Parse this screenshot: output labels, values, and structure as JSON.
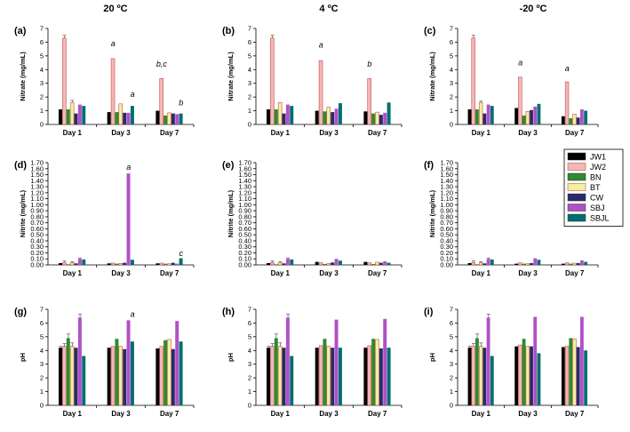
{
  "column_titles": [
    "20 ºC",
    "4 ºC",
    "-20 ºC"
  ],
  "colors": {
    "JW1": "#000000",
    "JW2": "#f2b8b8",
    "BN": "#2e8b2e",
    "BT": "#f0f0a0",
    "CW": "#2a2a6a",
    "SBJ": "#b050c8",
    "SBJL": "#006e6e"
  },
  "chart_data": [
    {
      "id": "a",
      "panel_label": "(a)",
      "type": "bar",
      "ylabel": "Nitrate (mg/mL)",
      "ylim": [
        0,
        7
      ],
      "yticks": [
        "0",
        "1",
        "2",
        "3",
        "4",
        "5",
        "6",
        "7"
      ],
      "categories": [
        "Day 1",
        "Day 3",
        "Day 7"
      ],
      "series": [
        {
          "name": "JW1",
          "values": [
            1.1,
            0.9,
            1.0
          ],
          "errors": [
            0,
            0,
            0
          ]
        },
        {
          "name": "JW2",
          "values": [
            6.3,
            4.8,
            3.35
          ],
          "errors": [
            0.2,
            0,
            0
          ]
        },
        {
          "name": "BN",
          "values": [
            1.1,
            0.9,
            0.65
          ],
          "errors": [
            0,
            0,
            0
          ]
        },
        {
          "name": "BT",
          "values": [
            1.6,
            1.5,
            0.85
          ],
          "errors": [
            0.15,
            0,
            0
          ]
        },
        {
          "name": "CW",
          "values": [
            0.8,
            0.85,
            0.8
          ],
          "errors": [
            0,
            0,
            0
          ]
        },
        {
          "name": "SBJ",
          "values": [
            1.45,
            0.85,
            0.75
          ],
          "errors": [
            0,
            0,
            0
          ]
        },
        {
          "name": "SBJL",
          "values": [
            1.35,
            1.35,
            0.8
          ],
          "errors": [
            0,
            0,
            0
          ]
        }
      ],
      "annotations": [
        {
          "text": "a",
          "category": 1,
          "series": "JW2",
          "value": 5.7
        },
        {
          "text": "a",
          "category": 1,
          "series": "SBJL",
          "value": 2.0
        },
        {
          "text": "b,c",
          "category": 2,
          "series": "JW2",
          "value": 4.2
        },
        {
          "text": "b",
          "category": 2,
          "series": "SBJL",
          "value": 1.4
        }
      ]
    },
    {
      "id": "b",
      "panel_label": "(b)",
      "type": "bar",
      "ylabel": "Nitrate (mg/mL)",
      "ylim": [
        0,
        7
      ],
      "yticks": [
        "0",
        "1",
        "2",
        "3",
        "4",
        "5",
        "6",
        "7"
      ],
      "categories": [
        "Day 1",
        "Day 3",
        "Day 7"
      ],
      "series": [
        {
          "name": "JW1",
          "values": [
            1.1,
            1.0,
            0.95
          ],
          "errors": [
            0,
            0,
            0
          ]
        },
        {
          "name": "JW2",
          "values": [
            6.3,
            4.65,
            3.35
          ],
          "errors": [
            0.2,
            0,
            0
          ]
        },
        {
          "name": "BN",
          "values": [
            1.1,
            0.95,
            0.8
          ],
          "errors": [
            0,
            0,
            0
          ]
        },
        {
          "name": "BT",
          "values": [
            1.6,
            1.25,
            0.9
          ],
          "errors": [
            0,
            0,
            0
          ]
        },
        {
          "name": "CW",
          "values": [
            0.8,
            0.9,
            0.7
          ],
          "errors": [
            0,
            0,
            0
          ]
        },
        {
          "name": "SBJ",
          "values": [
            1.45,
            1.15,
            0.85
          ],
          "errors": [
            0,
            0,
            0
          ]
        },
        {
          "name": "SBJL",
          "values": [
            1.35,
            1.55,
            1.6
          ],
          "errors": [
            0,
            0,
            0
          ]
        }
      ],
      "annotations": [
        {
          "text": "a",
          "category": 1,
          "series": "JW2",
          "value": 5.6
        },
        {
          "text": "b",
          "category": 2,
          "series": "JW2",
          "value": 4.2
        }
      ]
    },
    {
      "id": "c",
      "panel_label": "(c)",
      "type": "bar",
      "ylabel": "Nitrate (mg/mL)",
      "ylim": [
        0,
        7
      ],
      "yticks": [
        "0",
        "1",
        "2",
        "3",
        "4",
        "5",
        "6",
        "7"
      ],
      "categories": [
        "Day 1",
        "Day 3",
        "Day 7"
      ],
      "series": [
        {
          "name": "JW1",
          "values": [
            1.1,
            1.2,
            0.6
          ],
          "errors": [
            0,
            0,
            0
          ]
        },
        {
          "name": "JW2",
          "values": [
            6.3,
            3.45,
            3.1
          ],
          "errors": [
            0.2,
            0,
            0
          ]
        },
        {
          "name": "BN",
          "values": [
            1.1,
            0.65,
            0.45
          ],
          "errors": [
            0,
            0,
            0
          ]
        },
        {
          "name": "BT",
          "values": [
            1.6,
            0.95,
            0.75
          ],
          "errors": [
            0.1,
            0,
            0
          ]
        },
        {
          "name": "CW",
          "values": [
            0.8,
            1.05,
            0.5
          ],
          "errors": [
            0,
            0,
            0
          ]
        },
        {
          "name": "SBJ",
          "values": [
            1.45,
            1.3,
            1.1
          ],
          "errors": [
            0,
            0,
            0
          ]
        },
        {
          "name": "SBJL",
          "values": [
            1.35,
            1.5,
            1.0
          ],
          "errors": [
            0,
            0,
            0
          ]
        }
      ],
      "annotations": [
        {
          "text": "a",
          "category": 1,
          "series": "JW2",
          "value": 4.3
        },
        {
          "text": "a",
          "category": 2,
          "series": "JW2",
          "value": 3.9
        }
      ]
    },
    {
      "id": "d",
      "panel_label": "(d)",
      "type": "bar",
      "ylabel": "Nitrite (mg/mL)",
      "ylim": [
        0,
        1.7
      ],
      "yticks": [
        "0.00",
        "0.10",
        "0.20",
        "0.30",
        "0.40",
        "0.50",
        "0.60",
        "0.70",
        "0.80",
        "0.90",
        "1.00",
        "1.10",
        "1.20",
        "1.30",
        "1.40",
        "1.50",
        "1.60",
        "1.70"
      ],
      "categories": [
        "Day 1",
        "Day 3",
        "Day 7"
      ],
      "series": [
        {
          "name": "JW1",
          "values": [
            0.03,
            0.025,
            0.025
          ],
          "errors": [
            0,
            0,
            0
          ]
        },
        {
          "name": "JW2",
          "values": [
            0.04,
            0.03,
            0.03
          ],
          "errors": [
            0.025,
            0,
            0
          ]
        },
        {
          "name": "BN",
          "values": [
            0.01,
            0.02,
            0.02
          ],
          "errors": [
            0,
            0,
            0
          ]
        },
        {
          "name": "BT",
          "values": [
            0.035,
            0.025,
            0.02
          ],
          "errors": [
            0.015,
            0,
            0
          ]
        },
        {
          "name": "CW",
          "values": [
            0.025,
            0.035,
            0.035
          ],
          "errors": [
            0,
            0,
            0
          ]
        },
        {
          "name": "SBJ",
          "values": [
            0.1,
            1.52,
            0.02
          ],
          "errors": [
            0.015,
            0,
            0
          ]
        },
        {
          "name": "SBJL",
          "values": [
            0.09,
            0.085,
            0.11
          ],
          "errors": [
            0,
            0,
            0
          ]
        }
      ],
      "annotations": [
        {
          "text": "a",
          "category": 1,
          "series": "SBJ",
          "value": 1.58
        },
        {
          "text": "c",
          "category": 2,
          "series": "SBJL",
          "value": 0.15
        }
      ]
    },
    {
      "id": "e",
      "panel_label": "(e)",
      "type": "bar",
      "ylabel": "Nitrite (mg/mL)",
      "ylim": [
        0,
        1.7
      ],
      "yticks": [
        "0.00",
        "0.10",
        "0.20",
        "0.30",
        "0.40",
        "0.50",
        "0.60",
        "0.70",
        "0.80",
        "0.90",
        "1.00",
        "1.10",
        "1.20",
        "1.30",
        "1.40",
        "1.50",
        "1.60",
        "1.70"
      ],
      "categories": [
        "Day 1",
        "Day 3",
        "Day 7"
      ],
      "series": [
        {
          "name": "JW1",
          "values": [
            0.03,
            0.05,
            0.05
          ],
          "errors": [
            0,
            0,
            0
          ]
        },
        {
          "name": "JW2",
          "values": [
            0.04,
            0.035,
            0.035
          ],
          "errors": [
            0.025,
            0,
            0
          ]
        },
        {
          "name": "BN",
          "values": [
            0.01,
            0.015,
            0.015
          ],
          "errors": [
            0,
            0,
            0
          ]
        },
        {
          "name": "BT",
          "values": [
            0.035,
            0.025,
            0.045
          ],
          "errors": [
            0.015,
            0,
            0
          ]
        },
        {
          "name": "CW",
          "values": [
            0.025,
            0.04,
            0.035
          ],
          "errors": [
            0,
            0,
            0
          ]
        },
        {
          "name": "SBJ",
          "values": [
            0.1,
            0.1,
            0.06
          ],
          "errors": [
            0.015,
            0,
            0
          ]
        },
        {
          "name": "SBJL",
          "values": [
            0.09,
            0.07,
            0.035
          ],
          "errors": [
            0,
            0,
            0
          ]
        }
      ],
      "annotations": []
    },
    {
      "id": "f",
      "panel_label": "(f)",
      "type": "bar",
      "ylabel": "Nitrite (mg/mL)",
      "ylim": [
        0,
        1.7
      ],
      "yticks": [
        "0.00",
        "0.10",
        "0.20",
        "0.30",
        "0.40",
        "0.50",
        "0.60",
        "0.70",
        "0.80",
        "0.90",
        "1.00",
        "1.10",
        "1.20",
        "1.30",
        "1.40",
        "1.50",
        "1.60",
        "1.70"
      ],
      "categories": [
        "Day 1",
        "Day 3",
        "Day 7"
      ],
      "series": [
        {
          "name": "JW1",
          "values": [
            0.03,
            0.02,
            0.02
          ],
          "errors": [
            0,
            0,
            0
          ]
        },
        {
          "name": "JW2",
          "values": [
            0.04,
            0.035,
            0.035
          ],
          "errors": [
            0.025,
            0,
            0
          ]
        },
        {
          "name": "BN",
          "values": [
            0.01,
            0.02,
            0.02
          ],
          "errors": [
            0,
            0,
            0
          ]
        },
        {
          "name": "BT",
          "values": [
            0.035,
            0.02,
            0.03
          ],
          "errors": [
            0.015,
            0,
            0
          ]
        },
        {
          "name": "CW",
          "values": [
            0.025,
            0.03,
            0.03
          ],
          "errors": [
            0,
            0,
            0
          ]
        },
        {
          "name": "SBJ",
          "values": [
            0.1,
            0.11,
            0.075
          ],
          "errors": [
            0.015,
            0,
            0
          ]
        },
        {
          "name": "SBJL",
          "values": [
            0.09,
            0.085,
            0.05
          ],
          "errors": [
            0,
            0,
            0
          ]
        }
      ],
      "annotations": []
    },
    {
      "id": "g",
      "panel_label": "(g)",
      "type": "bar",
      "ylabel": "pH",
      "ylim": [
        0,
        7
      ],
      "yticks": [
        "0",
        "1",
        "2",
        "3",
        "4",
        "5",
        "6",
        "7"
      ],
      "categories": [
        "Day 1",
        "Day 3",
        "Day 7"
      ],
      "series": [
        {
          "name": "JW1",
          "values": [
            4.2,
            4.2,
            4.15
          ],
          "errors": [
            0.1,
            0,
            0
          ]
        },
        {
          "name": "JW2",
          "values": [
            4.3,
            4.3,
            4.3
          ],
          "errors": [
            0.2,
            0,
            0
          ]
        },
        {
          "name": "BN",
          "values": [
            4.9,
            4.85,
            4.75
          ],
          "errors": [
            0.3,
            0,
            0
          ]
        },
        {
          "name": "BT",
          "values": [
            4.3,
            4.3,
            4.8
          ],
          "errors": [
            0.25,
            0,
            0
          ]
        },
        {
          "name": "CW",
          "values": [
            4.2,
            4.1,
            4.1
          ],
          "errors": [
            0,
            0,
            0
          ]
        },
        {
          "name": "SBJ",
          "values": [
            6.4,
            6.2,
            6.15
          ],
          "errors": [
            0.25,
            0,
            0
          ]
        },
        {
          "name": "SBJL",
          "values": [
            3.6,
            4.65,
            4.65
          ],
          "errors": [
            0,
            0,
            0
          ]
        }
      ],
      "annotations": [
        {
          "text": "a",
          "category": 1,
          "series": "SBJL",
          "value": 6.45
        }
      ]
    },
    {
      "id": "h",
      "panel_label": "(h)",
      "type": "bar",
      "ylabel": "pH",
      "ylim": [
        0,
        7
      ],
      "yticks": [
        "0",
        "1",
        "2",
        "3",
        "4",
        "5",
        "6",
        "7"
      ],
      "categories": [
        "Day 1",
        "Day 3",
        "Day 7"
      ],
      "series": [
        {
          "name": "JW1",
          "values": [
            4.2,
            4.2,
            4.2
          ],
          "errors": [
            0.1,
            0,
            0
          ]
        },
        {
          "name": "JW2",
          "values": [
            4.3,
            4.35,
            4.35
          ],
          "errors": [
            0.2,
            0,
            0
          ]
        },
        {
          "name": "BN",
          "values": [
            4.9,
            4.85,
            4.85
          ],
          "errors": [
            0.3,
            0,
            0
          ]
        },
        {
          "name": "BT",
          "values": [
            4.3,
            4.3,
            4.8
          ],
          "errors": [
            0.25,
            0,
            0
          ]
        },
        {
          "name": "CW",
          "values": [
            4.2,
            4.2,
            4.15
          ],
          "errors": [
            0,
            0,
            0
          ]
        },
        {
          "name": "SBJ",
          "values": [
            6.4,
            6.25,
            6.3
          ],
          "errors": [
            0.25,
            0,
            0
          ]
        },
        {
          "name": "SBJL",
          "values": [
            3.6,
            4.2,
            4.2
          ],
          "errors": [
            0,
            0,
            0
          ]
        }
      ],
      "annotations": []
    },
    {
      "id": "i",
      "panel_label": "(i)",
      "type": "bar",
      "ylabel": "pH",
      "ylim": [
        0,
        7
      ],
      "yticks": [
        "0",
        "1",
        "2",
        "3",
        "4",
        "5",
        "6",
        "7"
      ],
      "categories": [
        "Day 1",
        "Day 3",
        "Day 7"
      ],
      "series": [
        {
          "name": "JW1",
          "values": [
            4.2,
            4.3,
            4.25
          ],
          "errors": [
            0.1,
            0,
            0
          ]
        },
        {
          "name": "JW2",
          "values": [
            4.3,
            4.4,
            4.3
          ],
          "errors": [
            0.2,
            0,
            0
          ]
        },
        {
          "name": "BN",
          "values": [
            4.9,
            4.85,
            4.9
          ],
          "errors": [
            0.3,
            0,
            0
          ]
        },
        {
          "name": "BT",
          "values": [
            4.3,
            4.3,
            4.85
          ],
          "errors": [
            0.25,
            0,
            0
          ]
        },
        {
          "name": "CW",
          "values": [
            4.2,
            4.3,
            4.25
          ],
          "errors": [
            0,
            0,
            0
          ]
        },
        {
          "name": "SBJ",
          "values": [
            6.4,
            6.45,
            6.45
          ],
          "errors": [
            0.25,
            0,
            0
          ]
        },
        {
          "name": "SBJL",
          "values": [
            3.6,
            3.8,
            4.0
          ],
          "errors": [
            0,
            0,
            0
          ]
        }
      ],
      "annotations": []
    }
  ],
  "legend": {
    "entries": [
      "JW1",
      "JW2",
      "BN",
      "BT",
      "CW",
      "SBJ",
      "SBJL"
    ]
  }
}
